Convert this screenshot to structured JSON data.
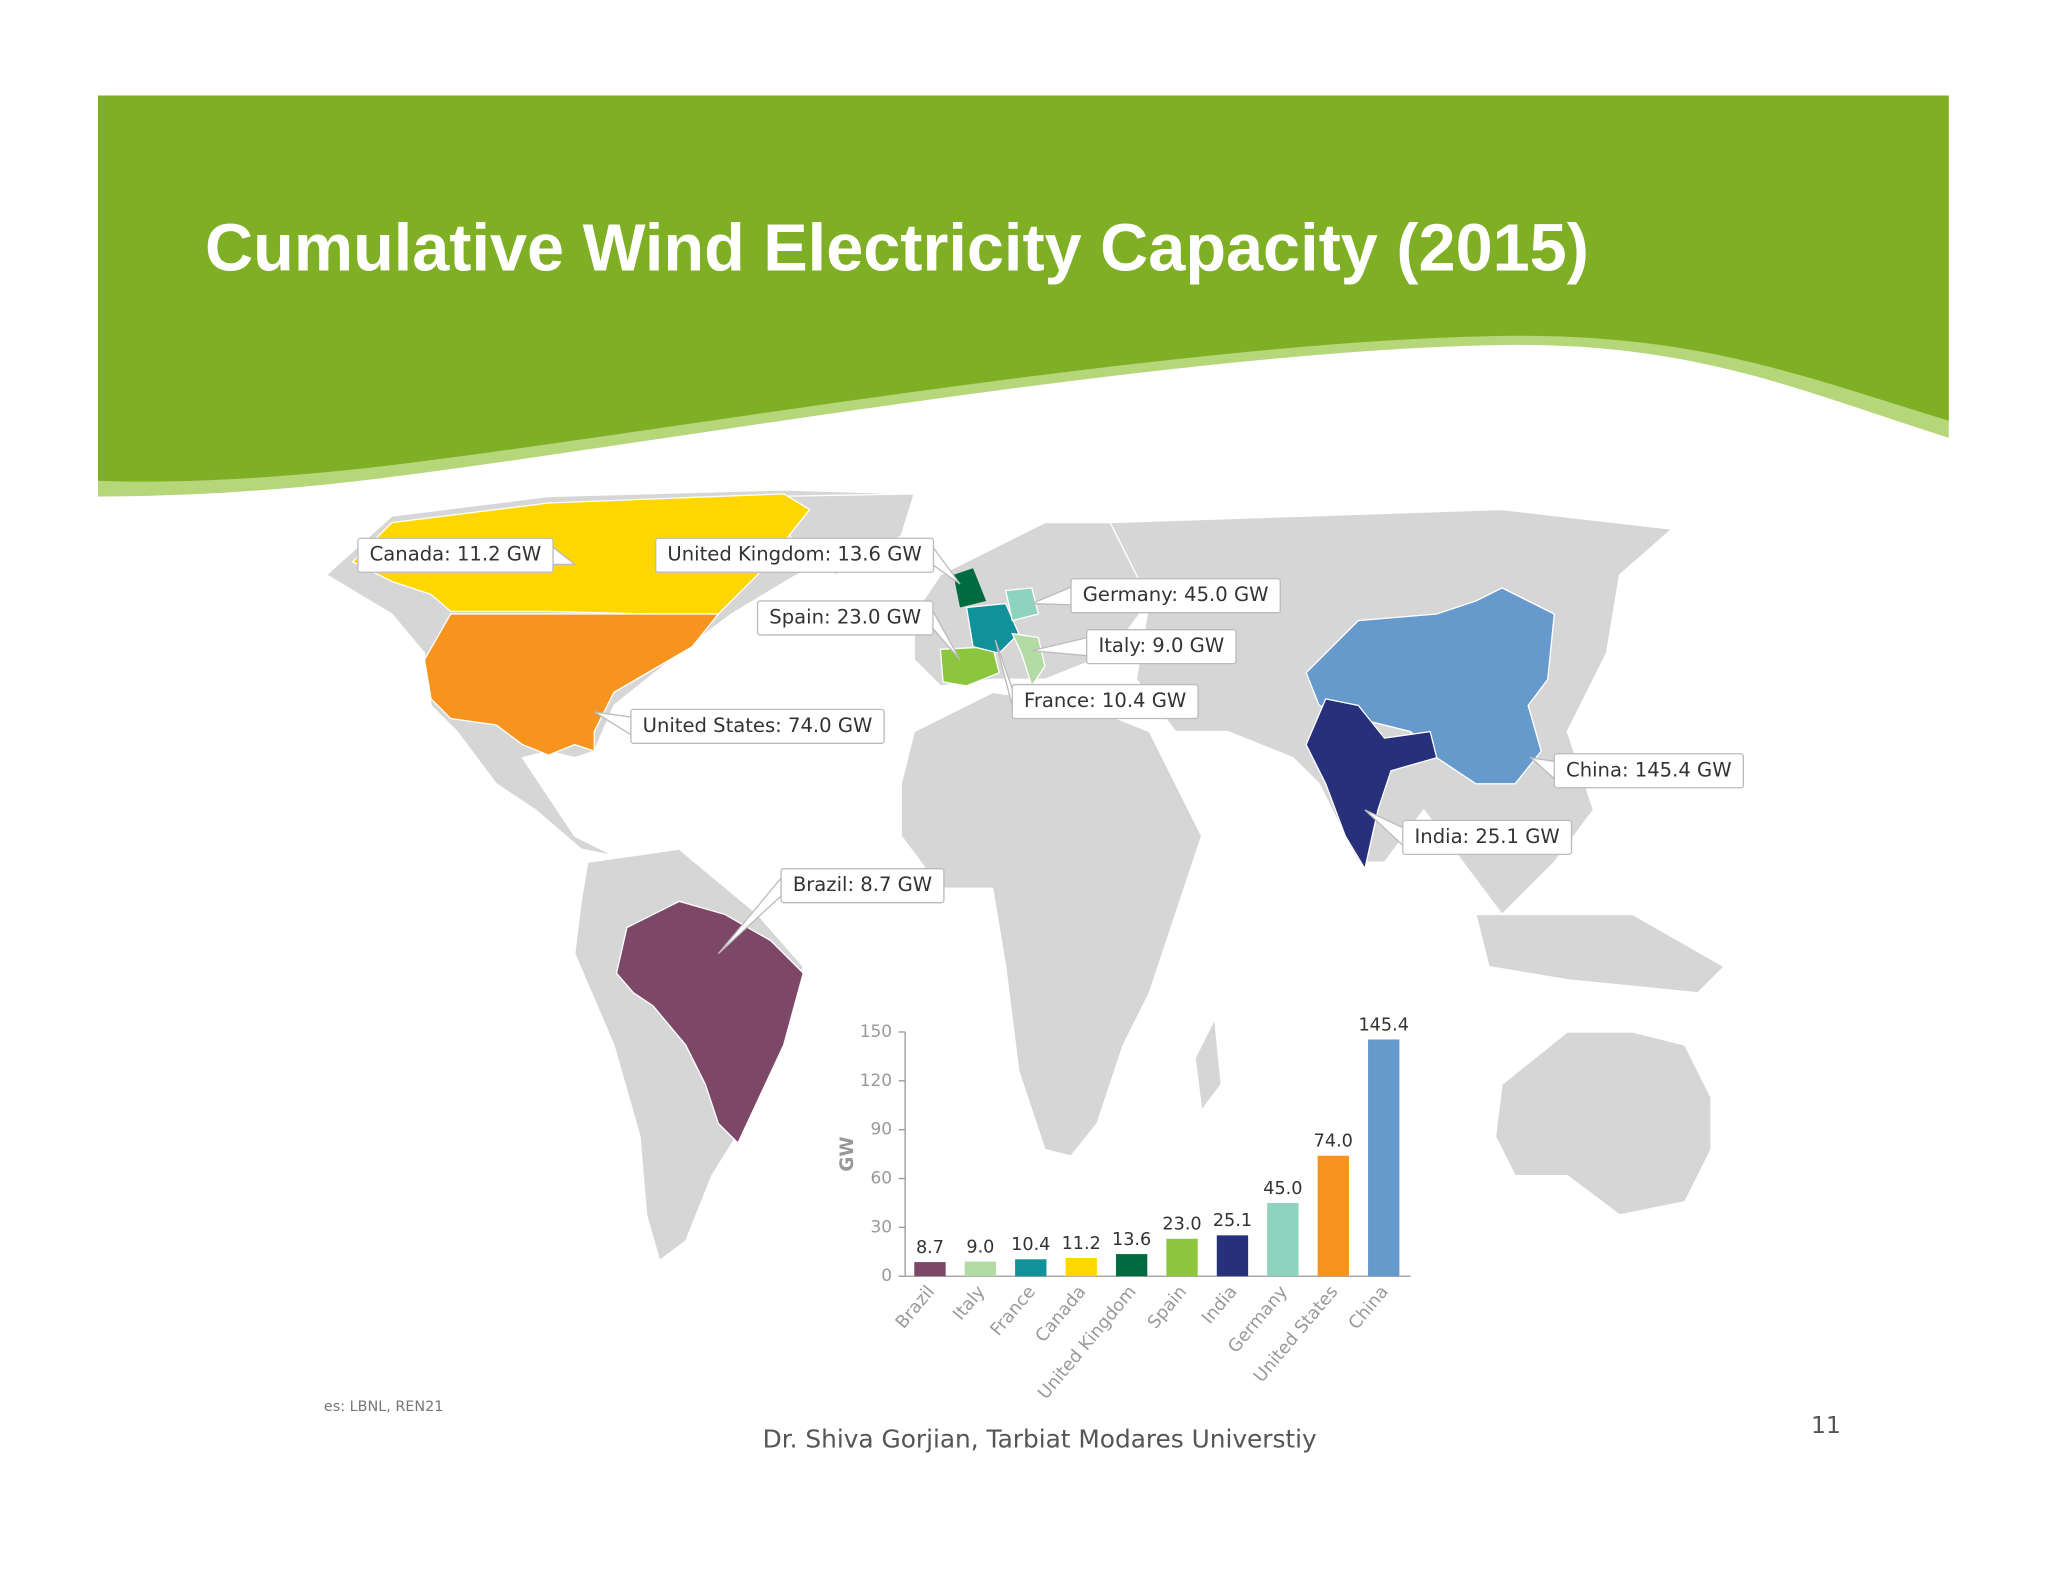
{
  "slide": {
    "title": "Cumulative Wind Electricity Capacity (2015)",
    "footer": "Dr. Shiva Gorjian, Tarbiat Modares Universtiy",
    "page_number": "11",
    "source": "es: LBNL, REN21"
  },
  "map": {
    "callouts": [
      "Canada: 11.2 GW",
      "United Kingdom: 13.6 GW",
      "Germany: 45.0 GW",
      "Spain: 23.0 GW",
      "Italy: 9.0 GW",
      "France: 10.4 GW",
      "United States: 74.0 GW",
      "China: 145.4 GW",
      "India: 25.1 GW",
      "Brazil: 8.7 GW"
    ]
  },
  "chart_data": {
    "type": "bar",
    "y_label": "GW",
    "categories": [
      "Brazil",
      "Italy",
      "France",
      "Canada",
      "United Kingdom",
      "Spain",
      "India",
      "Germany",
      "United States",
      "China"
    ],
    "values": [
      8.7,
      9.0,
      10.4,
      11.2,
      13.6,
      23.0,
      25.1,
      45.0,
      74.0,
      145.4
    ],
    "value_labels": [
      "8.7",
      "9.0",
      "10.4",
      "11.2",
      "13.6",
      "23.0",
      "25.1",
      "45.0",
      "74.0",
      "145.4"
    ],
    "colors": [
      "#7d4767",
      "#b5dba4",
      "#11929a",
      "#ffd700",
      "#006b3f",
      "#8cc63f",
      "#27307a",
      "#8dd3bd",
      "#f7941d",
      "#6699cc"
    ],
    "ylim": [
      0,
      150
    ],
    "yticks": [
      0,
      30,
      60,
      90,
      120,
      150
    ]
  }
}
